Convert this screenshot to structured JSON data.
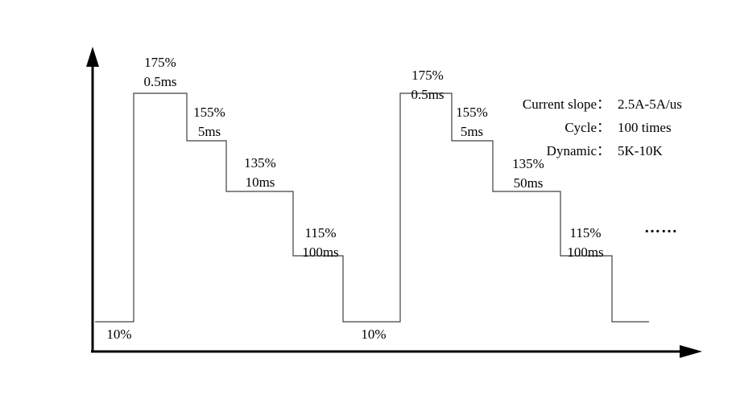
{
  "info": {
    "rows": [
      {
        "label": "Current slope：",
        "value": "2.5A-5A/us"
      },
      {
        "label": "Cycle：",
        "value": "100 times"
      },
      {
        "label": "Dynamic：",
        "value": "5K-10K"
      }
    ],
    "ellipsis": "……"
  },
  "chart_data": {
    "type": "line",
    "subtype": "step-waveform",
    "xlabel": "",
    "ylabel": "",
    "axis_color": "#000000",
    "line_color": "#404040",
    "cycles": [
      {
        "baseline_level": "10%",
        "steps": [
          {
            "level": "175%",
            "duration": "0.5ms"
          },
          {
            "level": "155%",
            "duration": "5ms"
          },
          {
            "level": "135%",
            "duration": "10ms"
          },
          {
            "level": "115%",
            "duration": "100ms"
          }
        ]
      },
      {
        "baseline_level": "10%",
        "steps": [
          {
            "level": "175%",
            "duration": "0.5ms"
          },
          {
            "level": "155%",
            "duration": "5ms"
          },
          {
            "level": "135%",
            "duration": "50ms"
          },
          {
            "level": "115%",
            "duration": "100ms"
          }
        ]
      }
    ]
  }
}
